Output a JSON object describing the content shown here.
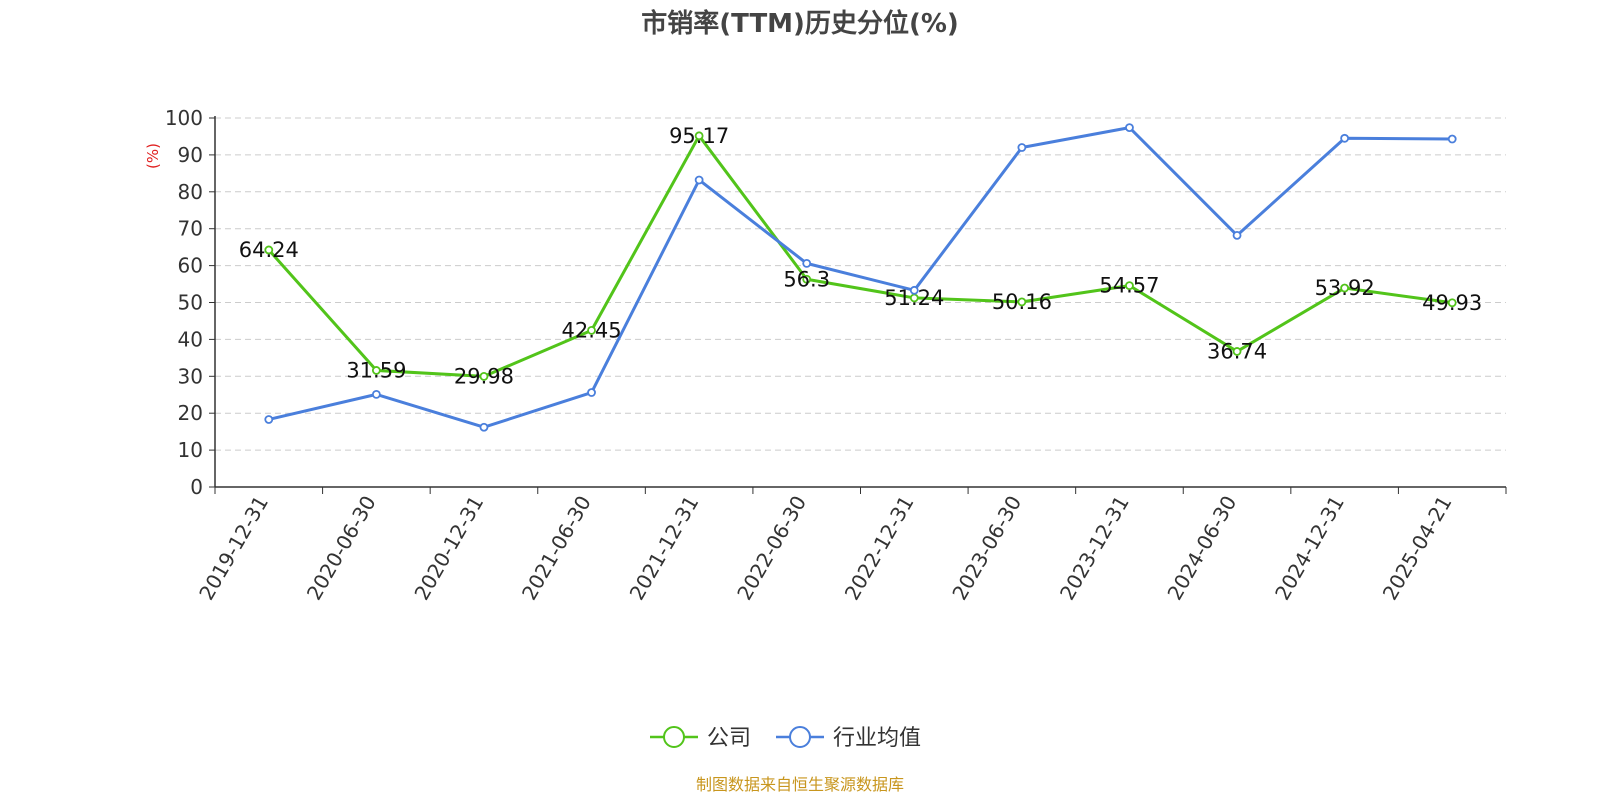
{
  "chart_data": {
    "type": "line",
    "title": "市销率(TTM)历史分位(%)",
    "ylabel": "(%)",
    "ylim": [
      0,
      100
    ],
    "yticks": [
      "0",
      "10",
      "20",
      "30",
      "40",
      "50",
      "60",
      "70",
      "80",
      "90",
      "100"
    ],
    "grid": true,
    "legend_position": "bottom-center",
    "categories": [
      "2019-12-31",
      "2020-06-30",
      "2020-12-31",
      "2021-06-30",
      "2021-12-31",
      "2022-06-30",
      "2022-12-31",
      "2023-06-30",
      "2023-12-31",
      "2024-06-30",
      "2024-12-31",
      "2025-04-21"
    ],
    "series": [
      {
        "name": "公司",
        "color": "#52c41a",
        "show_labels": true,
        "values": [
          64.24,
          31.59,
          29.98,
          42.45,
          95.17,
          56.3,
          51.24,
          50.16,
          54.57,
          36.74,
          53.92,
          49.93
        ],
        "labels": [
          "64.24",
          "31.59",
          "29.98",
          "42.45",
          "95.17",
          "56.3",
          "51.24",
          "50.16",
          "54.57",
          "36.74",
          "53.92",
          "49.93"
        ]
      },
      {
        "name": "行业均值",
        "color": "#4a7fdc",
        "show_labels": false,
        "values": [
          18.3,
          25.1,
          16.2,
          25.6,
          83.2,
          60.6,
          53.3,
          92.0,
          97.4,
          68.2,
          94.5,
          94.3
        ]
      }
    ],
    "source": "制图数据来自恒生聚源数据库"
  }
}
